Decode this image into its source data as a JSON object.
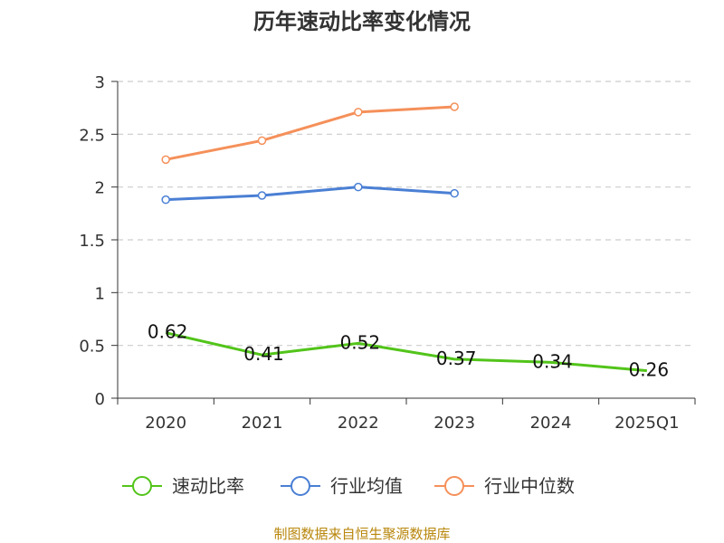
{
  "chart_data": {
    "type": "line",
    "title": "历年速动比率变化情况",
    "categories": [
      "2020",
      "2021",
      "2022",
      "2023",
      "2024",
      "2025Q1"
    ],
    "ylim": [
      0,
      3
    ],
    "yticks": [
      "0",
      "0.5",
      "1",
      "1.5",
      "2",
      "2.5",
      "3"
    ],
    "grid": true,
    "legend_position": "bottom",
    "series": [
      {
        "name": "速动比率",
        "color": "#52c41a",
        "values": [
          0.62,
          0.41,
          0.52,
          0.37,
          0.34,
          0.26
        ],
        "labels": [
          "0.62",
          "0.41",
          "0.52",
          "0.37",
          "0.34",
          "0.26"
        ],
        "markers": false
      },
      {
        "name": "行业均值",
        "color": "#4a7fd4",
        "values": [
          1.88,
          1.92,
          2.0,
          1.94,
          null,
          null
        ],
        "markers": true
      },
      {
        "name": "行业中位数",
        "color": "#f5905a",
        "values": [
          2.26,
          2.44,
          2.71,
          2.76,
          null,
          null
        ],
        "markers": true
      }
    ]
  },
  "source": "制图数据来自恒生聚源数据库"
}
